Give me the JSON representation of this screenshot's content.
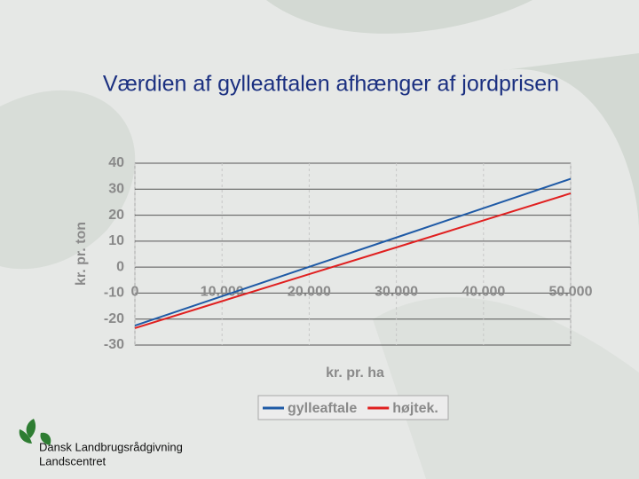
{
  "chart_data": {
    "type": "line",
    "title": "Værdien af gylleaftalen afhænger af jordprisen",
    "x_label": "kr. pr. ha",
    "y_label": "kr. pr. ton",
    "x": [
      0,
      10000,
      20000,
      30000,
      40000,
      50000
    ],
    "series": [
      {
        "name": "gylleaftale",
        "color": "#1f5aa6",
        "values": [
          -22.5,
          -11.2,
          0.1,
          11.4,
          22.7,
          34
        ]
      },
      {
        "name": "højtek.",
        "color": "#e02020",
        "values": [
          -23.5,
          -13.1,
          -2.7,
          7.6,
          18,
          28.4
        ]
      }
    ],
    "xlim": [
      0,
      50000
    ],
    "xticks": [
      0,
      {
        "value": 10000,
        "label": "10.000"
      },
      {
        "value": 20000,
        "label": "20.000"
      },
      {
        "value": 30000,
        "label": "30.000"
      },
      {
        "value": 40000,
        "label": "40.000"
      },
      {
        "value": 50000,
        "label": "50.000"
      }
    ],
    "ylim": [
      -30,
      40
    ],
    "yticks": [
      -30,
      -20,
      -10,
      0,
      10,
      20,
      30,
      40
    ],
    "grid": true,
    "legend": "bottom"
  },
  "footer": {
    "lines": [
      "Dansk Landbrugsrådgivning",
      "Landscentret"
    ]
  }
}
